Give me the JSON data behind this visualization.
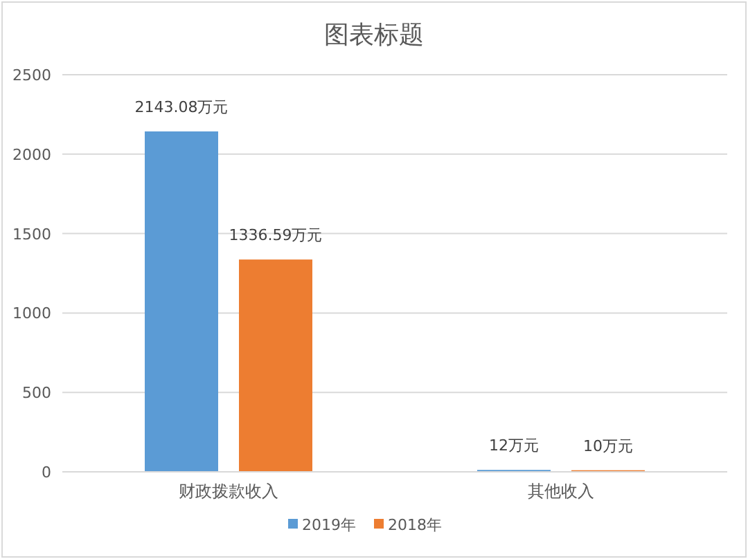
{
  "chart_data": {
    "type": "bar",
    "title": "图表标题",
    "categories": [
      "财政拨款收入",
      "其他收入"
    ],
    "series": [
      {
        "name": "2019年",
        "color": "#5b9bd5",
        "values": [
          2143.08,
          12
        ],
        "value_labels": [
          "2143.08万元",
          "12万元"
        ]
      },
      {
        "name": "2018年",
        "color": "#ed7d31",
        "values": [
          1336.59,
          10
        ],
        "value_labels": [
          "1336.59万元",
          "10万元"
        ]
      }
    ],
    "ylim": [
      0,
      2500
    ],
    "yticks": [
      0,
      500,
      1000,
      1500,
      2000,
      2500
    ],
    "grid": "y",
    "legend": "bottom"
  }
}
